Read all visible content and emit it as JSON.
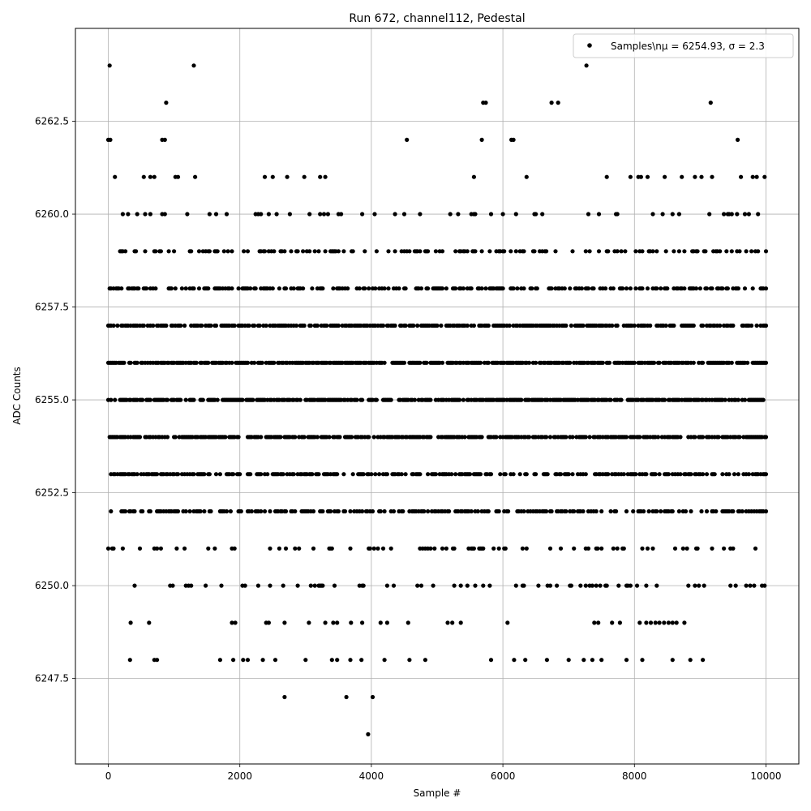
{
  "chart_data": {
    "type": "scatter",
    "title": "Run 672, channel112, Pedestal",
    "xlabel": "Sample #",
    "ylabel": "ADC Counts",
    "xlim": [
      -500,
      10500
    ],
    "ylim": [
      6245.2,
      6265.0
    ],
    "xticks": [
      0,
      2000,
      4000,
      6000,
      8000,
      10000
    ],
    "xtick_labels": [
      "0",
      "2000",
      "4000",
      "6000",
      "8000",
      "10000"
    ],
    "yticks": [
      6247.5,
      6250.0,
      6252.5,
      6255.0,
      6257.5,
      6260.0,
      6262.5
    ],
    "ytick_labels": [
      "6247.5",
      "6250.0",
      "6252.5",
      "6255.0",
      "6257.5",
      "6260.0",
      "6262.5"
    ],
    "grid": true,
    "legend_position": "top-right",
    "marker_color": "#000000",
    "series": [
      {
        "name": "Samples\\nμ = 6254.93, σ = 2.3",
        "points": [
          [
            20,
            6264
          ],
          [
            1300,
            6264
          ],
          [
            7270,
            6264
          ],
          [
            880,
            6263
          ],
          [
            5700,
            6263
          ],
          [
            5740,
            6263
          ],
          [
            6740,
            6263
          ],
          [
            6840,
            6263
          ],
          [
            9160,
            6263
          ],
          [
            0,
            6262
          ],
          [
            30,
            6262
          ],
          [
            820,
            6262
          ],
          [
            860,
            6262
          ],
          [
            4540,
            6262
          ],
          [
            5680,
            6262
          ],
          [
            6130,
            6262
          ],
          [
            6160,
            6262
          ],
          [
            9570,
            6262
          ],
          [
            3950,
            6246
          ],
          [
            2680,
            6247
          ],
          [
            3620,
            6247
          ],
          [
            4020,
            6247
          ],
          [
            330,
            6248
          ],
          [
            700,
            6248
          ],
          [
            740,
            6248
          ],
          [
            1700,
            6248
          ],
          [
            1900,
            6248
          ],
          [
            2050,
            6248
          ],
          [
            2120,
            6248
          ],
          [
            2350,
            6248
          ],
          [
            2540,
            6248
          ],
          [
            3000,
            6248
          ],
          [
            3400,
            6248
          ],
          [
            3480,
            6248
          ],
          [
            3680,
            6248
          ],
          [
            3850,
            6248
          ],
          [
            4200,
            6248
          ],
          [
            4580,
            6248
          ],
          [
            4820,
            6248
          ],
          [
            5820,
            6248
          ],
          [
            6170,
            6248
          ],
          [
            6340,
            6248
          ],
          [
            6670,
            6248
          ],
          [
            7000,
            6248
          ],
          [
            7230,
            6248
          ],
          [
            7360,
            6248
          ],
          [
            7500,
            6248
          ],
          [
            7880,
            6248
          ],
          [
            8120,
            6248
          ],
          [
            8580,
            6248
          ],
          [
            8850,
            6248
          ],
          [
            9040,
            6248
          ],
          [
            340,
            6249
          ],
          [
            620,
            6249
          ],
          [
            1880,
            6249
          ],
          [
            1930,
            6249
          ],
          [
            2400,
            6249
          ],
          [
            2440,
            6249
          ],
          [
            2680,
            6249
          ],
          [
            3050,
            6249
          ],
          [
            3300,
            6249
          ],
          [
            3420,
            6249
          ],
          [
            3480,
            6249
          ],
          [
            3690,
            6249
          ],
          [
            3860,
            6249
          ],
          [
            4140,
            6249
          ],
          [
            4240,
            6249
          ],
          [
            4560,
            6249
          ],
          [
            5160,
            6249
          ],
          [
            5230,
            6249
          ],
          [
            5360,
            6249
          ],
          [
            6070,
            6249
          ],
          [
            7390,
            6249
          ],
          [
            7450,
            6249
          ],
          [
            7660,
            6249
          ],
          [
            7780,
            6249
          ],
          [
            8080,
            6249
          ],
          [
            8180,
            6249
          ],
          [
            8250,
            6249
          ],
          [
            8320,
            6249
          ],
          [
            8380,
            6249
          ],
          [
            8450,
            6249
          ],
          [
            8520,
            6249
          ],
          [
            8580,
            6249
          ],
          [
            8640,
            6249
          ],
          [
            8760,
            6249
          ],
          [
            4050,
            6260
          ],
          [
            6200,
            6260
          ],
          [
            8430,
            6260
          ],
          [
            9440,
            6260
          ],
          [
            9880,
            6260
          ]
        ]
      }
    ],
    "row_density": {
      "6250": 0.14,
      "6251": 0.16,
      "6252": 0.44,
      "6253": 0.5,
      "6254": 0.72,
      "6255": 0.72,
      "6256": 0.72,
      "6257": 0.62,
      "6258": 0.4,
      "6259": 0.3,
      "6260": 0.08,
      "6261": 0.05
    }
  }
}
